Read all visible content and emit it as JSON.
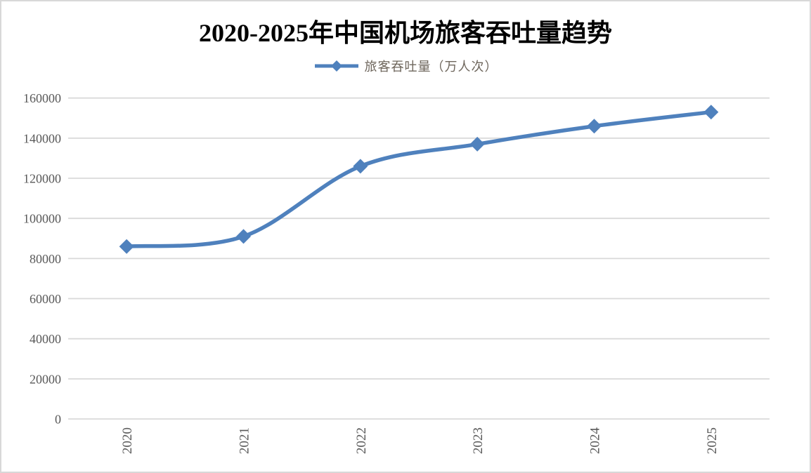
{
  "title": "2020-2025年中国机场旅客吞吐量趋势",
  "legend": {
    "label": "旅客吞吐量（万人次）"
  },
  "colors": {
    "line": "#4f81bd",
    "grid": "#d9d9d9",
    "tick_text": "#595959",
    "legend_text": "#6e665c",
    "title_text": "#000000",
    "border": "#d8d8d8"
  },
  "chart_data": {
    "type": "line",
    "title": "2020-2025年中国机场旅客吞吐量趋势",
    "categories": [
      "2020",
      "2021",
      "2022",
      "2023",
      "2024",
      "2025"
    ],
    "series": [
      {
        "name": "旅客吞吐量（万人次）",
        "values": [
          86000,
          91000,
          126000,
          137000,
          146000,
          153000
        ]
      }
    ],
    "xlabel": "",
    "ylabel": "",
    "ylim": [
      0,
      160000
    ],
    "ytick_step": 20000,
    "yticks": [
      "0",
      "20000",
      "40000",
      "60000",
      "80000",
      "100000",
      "120000",
      "140000",
      "160000"
    ],
    "grid": true,
    "legend_position": "top",
    "smooth": true,
    "marker": "diamond",
    "x_label_rotation": -90
  }
}
